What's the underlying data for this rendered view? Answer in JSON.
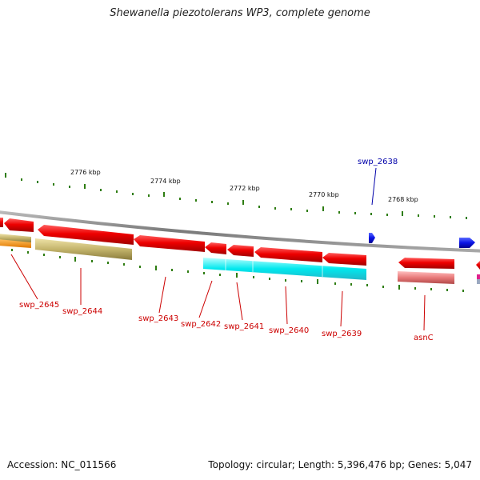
{
  "title": "Shewanella piezotolerans WP3, complete genome",
  "footer": {
    "accession": "Accession: NC_011566",
    "summary": "Topology: circular; Length: 5,396,476 bp; Genes: 5,047"
  },
  "colors": {
    "backbone": "#8a8a8a",
    "tick": "#2e7d12",
    "forward_gene": "#1010e0",
    "reverse_gene": "#e01010",
    "label_red": "#cc0000",
    "label_blue": "#0000aa"
  },
  "ticks": [
    {
      "label": "2776 kbp"
    },
    {
      "label": "2774 kbp"
    },
    {
      "label": "2772 kbp"
    },
    {
      "label": "2770 kbp"
    },
    {
      "label": "2768 kbp"
    }
  ],
  "genes": [
    {
      "label": "swp_2645"
    },
    {
      "label": "swp_2644"
    },
    {
      "label": "swp_2643"
    },
    {
      "label": "swp_2642"
    },
    {
      "label": "swp_2641"
    },
    {
      "label": "swp_2640"
    },
    {
      "label": "swp_2639"
    },
    {
      "label": "asnC"
    },
    {
      "label": "swp_2638"
    }
  ]
}
